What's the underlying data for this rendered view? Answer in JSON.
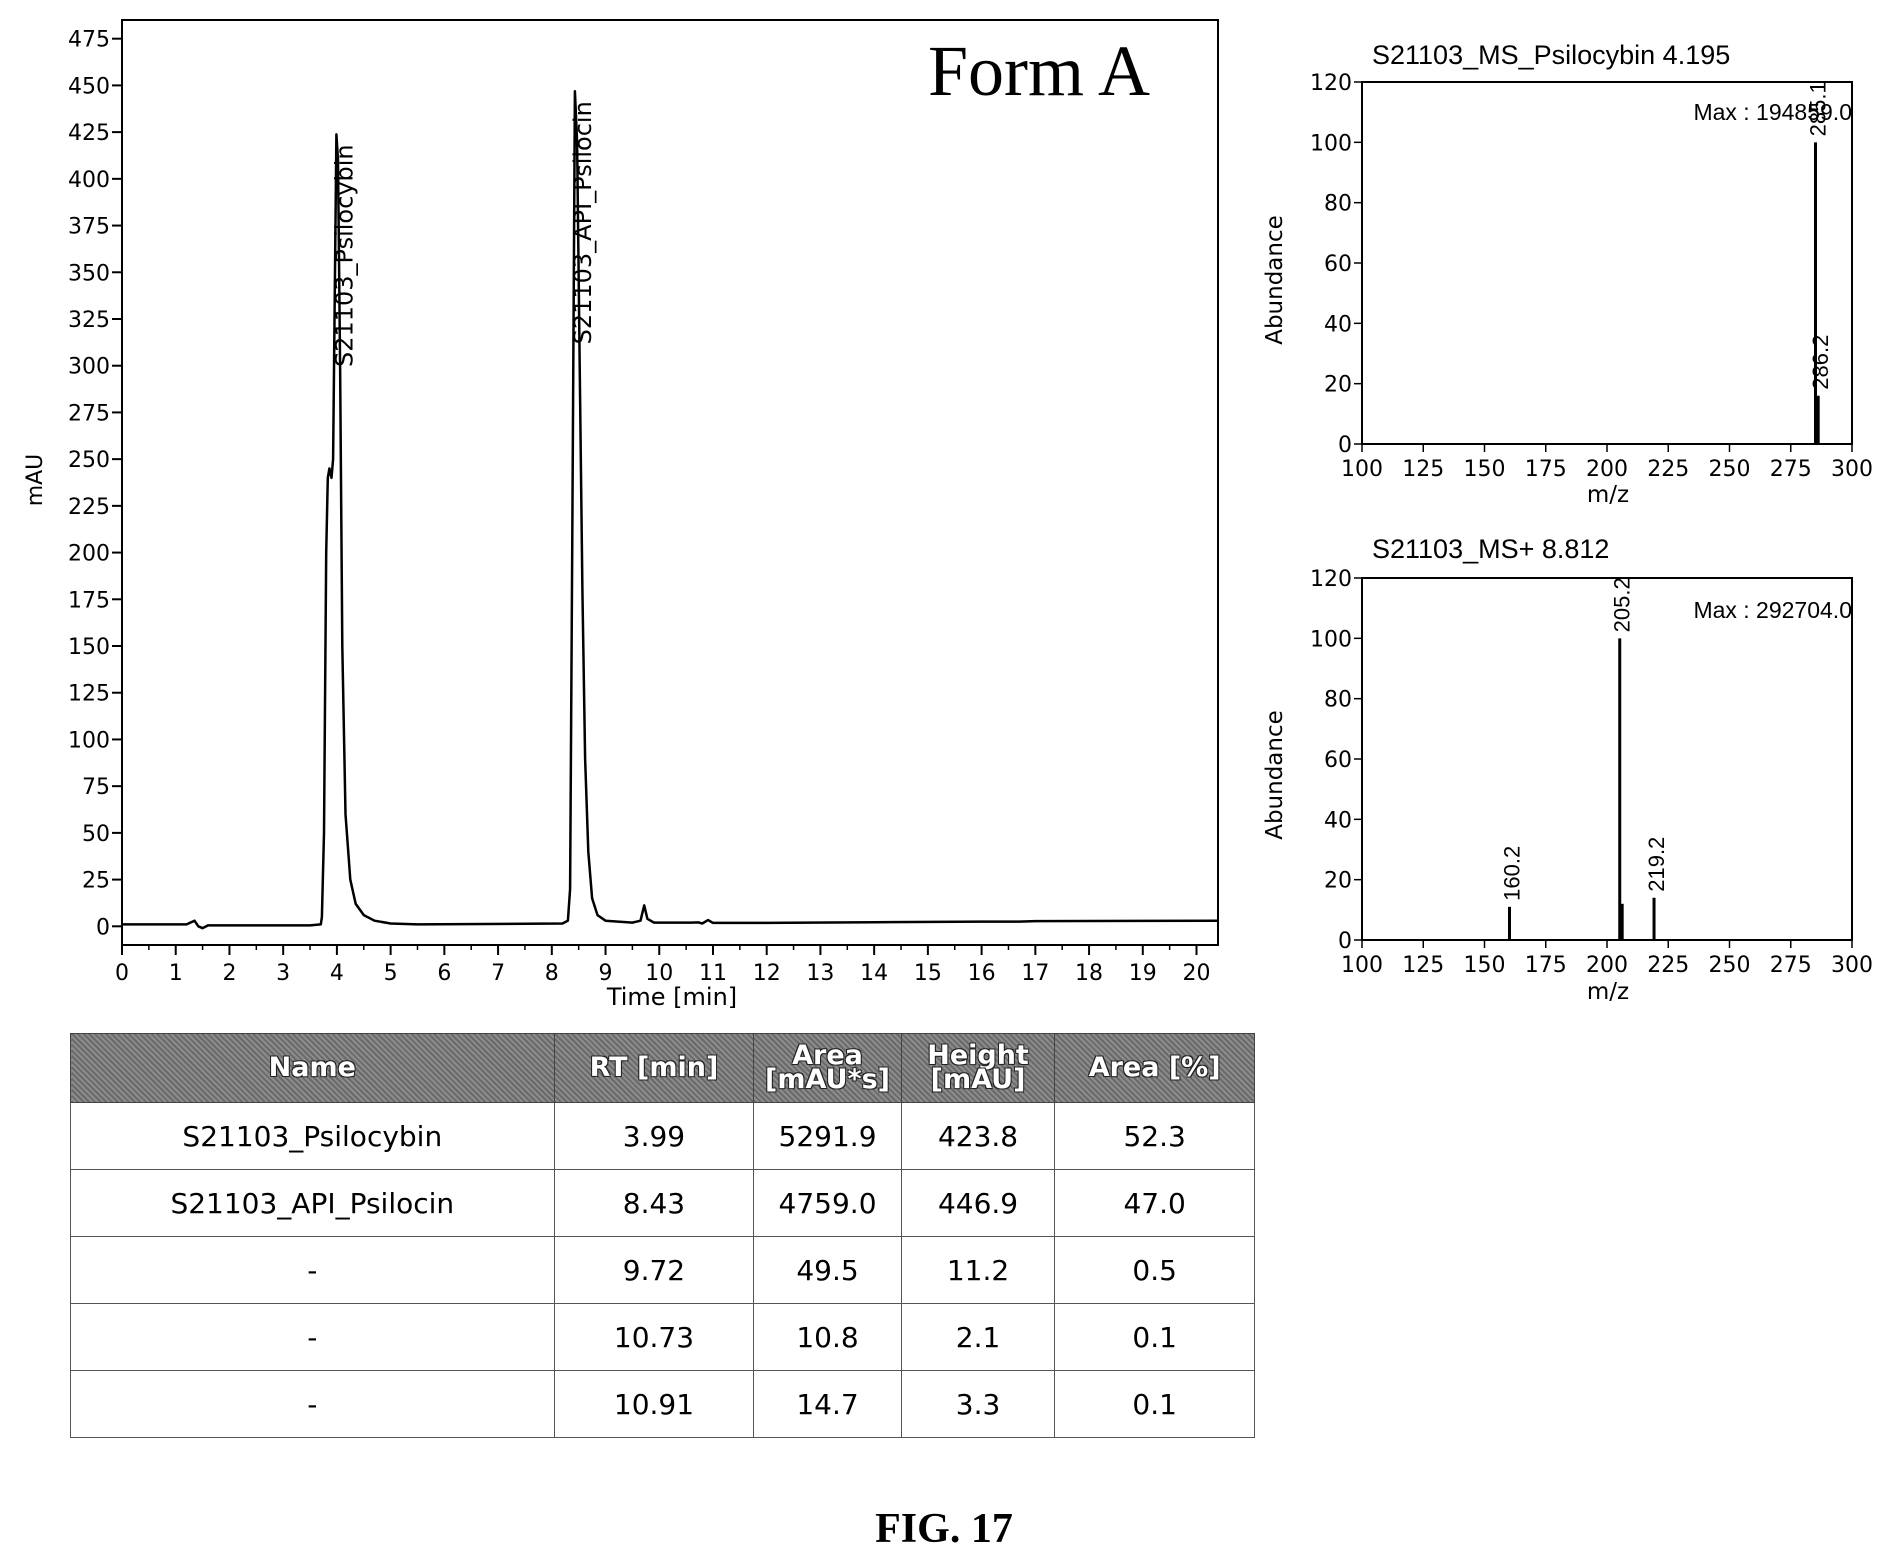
{
  "chart_data": [
    {
      "type": "line",
      "title": "Form A",
      "xlabel": "Time [min]",
      "ylabel": "mAU",
      "xlim": [
        0,
        20.4
      ],
      "ylim": [
        -10,
        485
      ],
      "x_ticks": [
        "0",
        "1",
        "2",
        "3",
        "4",
        "5",
        "6",
        "7",
        "8",
        "9",
        "10",
        "11",
        "12",
        "13",
        "14",
        "15",
        "16",
        "17",
        "18",
        "19",
        "20"
      ],
      "y_ticks": [
        "0",
        "25",
        "50",
        "75",
        "100",
        "125",
        "150",
        "175",
        "200",
        "225",
        "250",
        "275",
        "300",
        "325",
        "350",
        "375",
        "400",
        "425",
        "450",
        "475"
      ],
      "grid": false,
      "series": [
        {
          "points": [
            [
              0,
              1
            ],
            [
              1.2,
              1
            ],
            [
              1.35,
              3
            ],
            [
              1.42,
              0
            ],
            [
              1.5,
              -1
            ],
            [
              1.6,
              0.5
            ],
            [
              3.5,
              0.5
            ],
            [
              3.7,
              1
            ],
            [
              3.72,
              5
            ],
            [
              3.76,
              50
            ],
            [
              3.8,
              200
            ],
            [
              3.83,
              240
            ],
            [
              3.86,
              245
            ],
            [
              3.9,
              240
            ],
            [
              3.93,
              250
            ],
            [
              3.96,
              340
            ],
            [
              3.99,
              423.8
            ],
            [
              4.02,
              410
            ],
            [
              4.06,
              300
            ],
            [
              4.1,
              150
            ],
            [
              4.16,
              60
            ],
            [
              4.25,
              25
            ],
            [
              4.35,
              12
            ],
            [
              4.5,
              6
            ],
            [
              4.7,
              3
            ],
            [
              5,
              1.5
            ],
            [
              5.5,
              1
            ],
            [
              8.2,
              1.5
            ],
            [
              8.3,
              3
            ],
            [
              8.34,
              20
            ],
            [
              8.38,
              200
            ],
            [
              8.43,
              446.9
            ],
            [
              8.47,
              420
            ],
            [
              8.52,
              300
            ],
            [
              8.57,
              180
            ],
            [
              8.62,
              90
            ],
            [
              8.68,
              40
            ],
            [
              8.75,
              15
            ],
            [
              8.85,
              6
            ],
            [
              9,
              3
            ],
            [
              9.5,
              2
            ],
            [
              9.65,
              3
            ],
            [
              9.72,
              11.2
            ],
            [
              9.78,
              4
            ],
            [
              9.9,
              2
            ],
            [
              10.6,
              2
            ],
            [
              10.73,
              2.1
            ],
            [
              10.8,
              1.5
            ],
            [
              10.91,
              3.3
            ],
            [
              11,
              1.8
            ],
            [
              12,
              1.8
            ],
            [
              14,
              2.2
            ],
            [
              16,
              2.5
            ],
            [
              16.7,
              2.5
            ],
            [
              17,
              2.8
            ],
            [
              20.4,
              3
            ]
          ]
        }
      ],
      "annotations": [
        {
          "label": "S21103_Psilocybin",
          "x": 3.99,
          "y": 423.8
        },
        {
          "label": "S21103_API_Psilocin",
          "x": 8.43,
          "y": 446.9
        }
      ]
    },
    {
      "type": "bar",
      "title": "S21103_MS_Psilocybin 4.195",
      "xlabel": "m/z",
      "ylabel": "Abundance",
      "xlim": [
        100,
        300
      ],
      "ylim": [
        0,
        120
      ],
      "x_ticks": [
        "100",
        "125",
        "150",
        "175",
        "200",
        "225",
        "250",
        "275",
        "300"
      ],
      "y_ticks": [
        "0",
        "20",
        "40",
        "60",
        "80",
        "100",
        "120"
      ],
      "max_label": "Max : 194859.0",
      "peaks": [
        {
          "x": 285.1,
          "y": 100,
          "label": "285.1"
        },
        {
          "x": 286.2,
          "y": 16,
          "label": "286.2"
        }
      ]
    },
    {
      "type": "bar",
      "title": "S21103_MS+ 8.812",
      "xlabel": "m/z",
      "ylabel": "Abundance",
      "xlim": [
        100,
        300
      ],
      "ylim": [
        0,
        120
      ],
      "x_ticks": [
        "100",
        "125",
        "150",
        "175",
        "200",
        "225",
        "250",
        "275",
        "300"
      ],
      "y_ticks": [
        "0",
        "20",
        "40",
        "60",
        "80",
        "100",
        "120"
      ],
      "max_label": "Max : 292704.0",
      "peaks": [
        {
          "x": 160.2,
          "y": 11,
          "label": "160.2"
        },
        {
          "x": 205.2,
          "y": 100,
          "label": "205.2"
        },
        {
          "x": 206.2,
          "y": 12
        },
        {
          "x": 219.2,
          "y": 14,
          "label": "219.2"
        }
      ]
    }
  ],
  "table": {
    "headers": [
      {
        "line1": "Name",
        "line2": ""
      },
      {
        "line1": "RT [min]",
        "line2": ""
      },
      {
        "line1": "Area",
        "line2": "[mAU*s]"
      },
      {
        "line1": "Height",
        "line2": "[mAU]"
      },
      {
        "line1": "Area [%]",
        "line2": ""
      }
    ],
    "rows": [
      [
        "S21103_Psilocybin",
        "3.99",
        "5291.9",
        "423.8",
        "52.3"
      ],
      [
        "S21103_API_Psilocin",
        "8.43",
        "4759.0",
        "446.9",
        "47.0"
      ],
      [
        "-",
        "9.72",
        "49.5",
        "11.2",
        "0.5"
      ],
      [
        "-",
        "10.73",
        "10.8",
        "2.1",
        "0.1"
      ],
      [
        "-",
        "10.91",
        "14.7",
        "3.3",
        "0.1"
      ]
    ]
  },
  "caption": "FIG. 17"
}
